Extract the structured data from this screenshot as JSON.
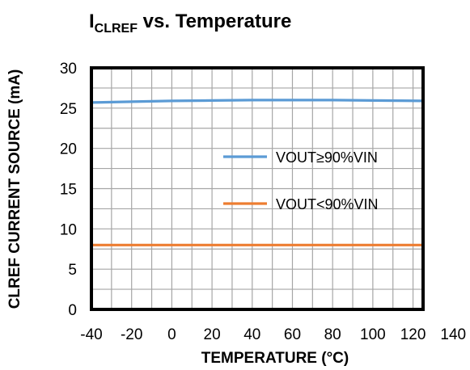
{
  "chart_data": {
    "type": "line",
    "title": {
      "main": "I",
      "subscript": "CLREF",
      "rest": " vs. Temperature"
    },
    "xlabel": "TEMPERATURE  (°C)",
    "ylabel": "CLREF  CURRENT  SOURCE  (mA)",
    "xlim": [
      -40,
      140
    ],
    "ylim": [
      0,
      30
    ],
    "xticks": [
      -40,
      -20,
      0,
      20,
      40,
      60,
      80,
      100,
      120,
      140
    ],
    "yticks": [
      0,
      5,
      10,
      15,
      20,
      25,
      30
    ],
    "grid": true,
    "legend_position": "center-right",
    "series": [
      {
        "name": "VOUT≥90%VIN",
        "color": "#5B9BD5",
        "x": [
          -40,
          -20,
          0,
          20,
          40,
          60,
          80,
          100,
          125
        ],
        "y": [
          25.7,
          25.8,
          25.9,
          25.95,
          26.0,
          26.0,
          26.0,
          25.95,
          25.9
        ]
      },
      {
        "name": "VOUT<90%VIN",
        "color": "#ED7D31",
        "x": [
          -40,
          -20,
          0,
          20,
          40,
          60,
          80,
          100,
          125
        ],
        "y": [
          8.0,
          8.0,
          8.0,
          8.0,
          8.0,
          8.0,
          8.0,
          8.0,
          8.0
        ]
      }
    ]
  }
}
